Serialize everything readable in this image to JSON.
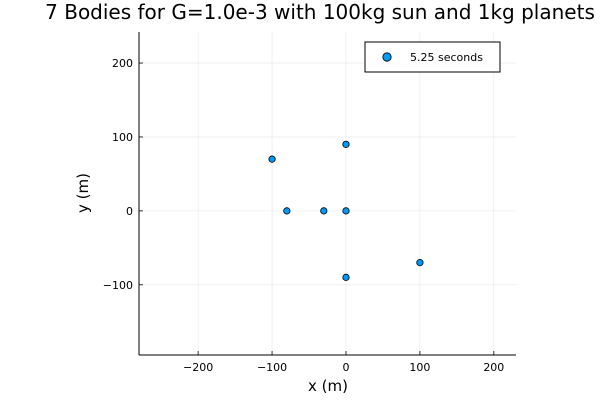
{
  "chart_data": {
    "type": "scatter",
    "title": "7 Bodies for G=1.0e-3 with 100kg sun and 1kg planets",
    "xlabel": "x (m)",
    "ylabel": "y (m)",
    "xlim": [
      -280,
      230
    ],
    "ylim": [
      -195,
      242
    ],
    "xticks": [
      -200,
      -100,
      0,
      100,
      200
    ],
    "xtick_labels": [
      "−200",
      "−100",
      "0",
      "100",
      "200"
    ],
    "yticks": [
      -100,
      0,
      100,
      200
    ],
    "ytick_labels": [
      "−100",
      "0",
      "100",
      "200"
    ],
    "grid": true,
    "legend_position": "top-right",
    "series": [
      {
        "name": "5.25 seconds",
        "color": "#009AFA",
        "points": [
          {
            "x": 0,
            "y": 0
          },
          {
            "x": -30,
            "y": 0
          },
          {
            "x": -80,
            "y": 0
          },
          {
            "x": -100,
            "y": 70
          },
          {
            "x": 0,
            "y": 90
          },
          {
            "x": 0,
            "y": -90
          },
          {
            "x": 100,
            "y": -70
          }
        ]
      }
    ]
  }
}
